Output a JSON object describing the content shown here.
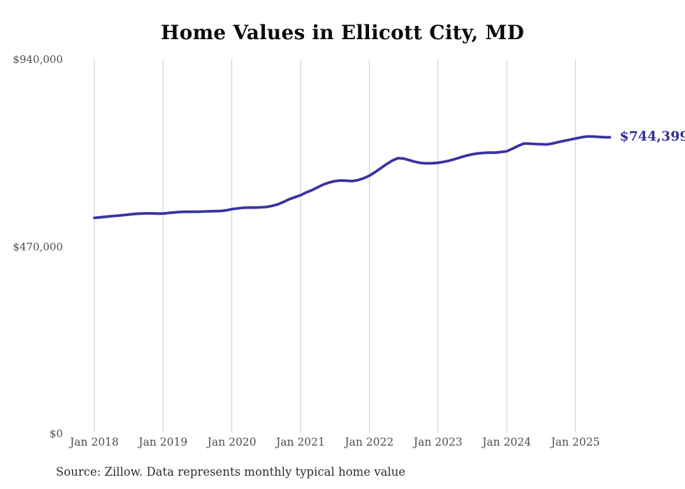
{
  "page": {
    "background": "#ffffff"
  },
  "source_note": "Source: Zillow. Data represents monthly typical home value",
  "chart_data": {
    "type": "line",
    "title": "Home Values in Ellicott City, MD",
    "series_name": "Monthly typical home value",
    "x": [
      "2018-01",
      "2018-02",
      "2018-03",
      "2018-04",
      "2018-05",
      "2018-06",
      "2018-07",
      "2018-08",
      "2018-09",
      "2018-10",
      "2018-11",
      "2018-12",
      "2019-01",
      "2019-02",
      "2019-03",
      "2019-04",
      "2019-05",
      "2019-06",
      "2019-07",
      "2019-08",
      "2019-09",
      "2019-10",
      "2019-11",
      "2019-12",
      "2020-01",
      "2020-02",
      "2020-03",
      "2020-04",
      "2020-05",
      "2020-06",
      "2020-07",
      "2020-08",
      "2020-09",
      "2020-10",
      "2020-11",
      "2020-12",
      "2021-01",
      "2021-02",
      "2021-03",
      "2021-04",
      "2021-05",
      "2021-06",
      "2021-07",
      "2021-08",
      "2021-09",
      "2021-10",
      "2021-11",
      "2021-12",
      "2022-01",
      "2022-02",
      "2022-03",
      "2022-04",
      "2022-05",
      "2022-06",
      "2022-07",
      "2022-08",
      "2022-09",
      "2022-10",
      "2022-11",
      "2022-12",
      "2023-01",
      "2023-02",
      "2023-03",
      "2023-04",
      "2023-05",
      "2023-06",
      "2023-07",
      "2023-08",
      "2023-09",
      "2023-10",
      "2023-11",
      "2023-12",
      "2024-01",
      "2024-02",
      "2024-03",
      "2024-04",
      "2024-05",
      "2024-06",
      "2024-07",
      "2024-08",
      "2024-09",
      "2024-10",
      "2024-11",
      "2024-12",
      "2025-01",
      "2025-02",
      "2025-03",
      "2025-04",
      "2025-05",
      "2025-06",
      "2025-07"
    ],
    "values": [
      542000,
      543500,
      545000,
      546500,
      547500,
      549000,
      550500,
      552000,
      553000,
      553500,
      553500,
      553000,
      553000,
      554500,
      556000,
      557000,
      557500,
      557500,
      557500,
      558000,
      558500,
      559000,
      559500,
      561000,
      564000,
      566000,
      567500,
      568000,
      568000,
      568500,
      569500,
      572000,
      576000,
      582000,
      589000,
      594000,
      599000,
      606000,
      612000,
      619000,
      626000,
      631000,
      634500,
      636000,
      635500,
      634500,
      637000,
      641500,
      648000,
      657000,
      667000,
      677000,
      686000,
      692000,
      691000,
      687000,
      683000,
      680000,
      679000,
      679500,
      680500,
      683000,
      686000,
      690000,
      694500,
      698500,
      702000,
      704000,
      705500,
      706000,
      706000,
      707500,
      709500,
      716000,
      723000,
      729000,
      728500,
      727500,
      727000,
      726500,
      729000,
      732500,
      735500,
      738500,
      741500,
      744500,
      746500,
      746500,
      745500,
      744800,
      744399
    ],
    "x_ticks": [
      {
        "label": "Jan 2018",
        "index": 0
      },
      {
        "label": "Jan 2019",
        "index": 12
      },
      {
        "label": "Jan 2020",
        "index": 24
      },
      {
        "label": "Jan 2021",
        "index": 36
      },
      {
        "label": "Jan 2022",
        "index": 48
      },
      {
        "label": "Jan 2023",
        "index": 60
      },
      {
        "label": "Jan 2024",
        "index": 72
      },
      {
        "label": "Jan 2025",
        "index": 84
      }
    ],
    "y_ticks": [
      {
        "label": "$940,000",
        "value": 940000
      },
      {
        "label": "$470,000",
        "value": 470000
      },
      {
        "label": "$0",
        "value": 0
      }
    ],
    "ylim": [
      0,
      940000
    ],
    "end_label": "$744,399",
    "end_value": 744399,
    "line_color": "#3a33a0",
    "end_label_color": "#332f94",
    "grid_color": "#c8c8c8",
    "tick_color": "#4d4d4d",
    "gridlines": "vertical-only",
    "legend_position": "none"
  }
}
